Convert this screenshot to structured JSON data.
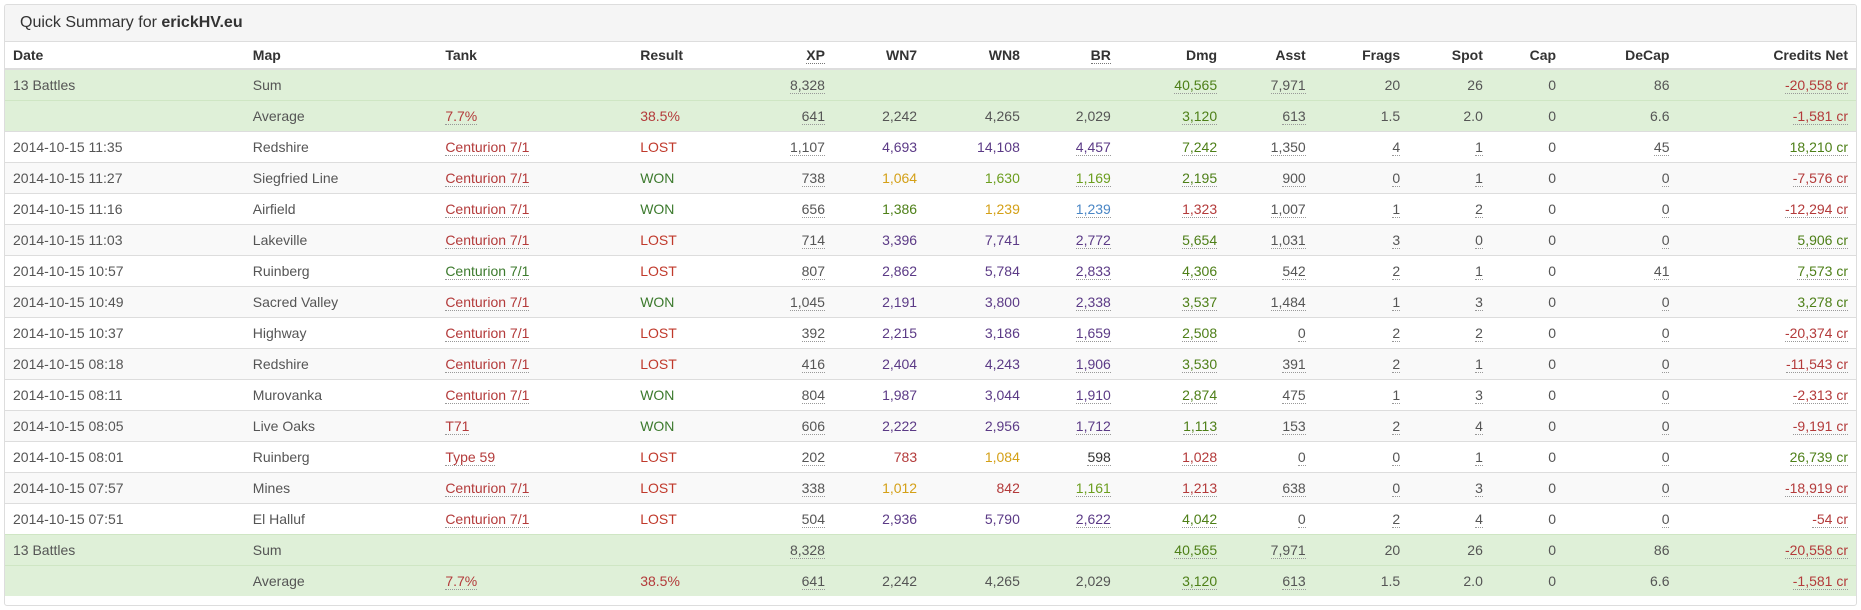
{
  "panel": {
    "title_prefix": "Quick Summary for ",
    "player": "erickHV.eu"
  },
  "columns": [
    "Date",
    "Map",
    "Tank",
    "Result",
    "XP",
    "WN7",
    "WN8",
    "BR",
    "Dmg",
    "Asst",
    "Frags",
    "Spot",
    "Cap",
    "DeCap",
    "Credits Net"
  ],
  "summary_top": {
    "sum": {
      "date": "13 Battles",
      "map": "Sum",
      "tank": "",
      "result": "",
      "xp": "8,328",
      "wn7": "",
      "wn8": "",
      "br": "",
      "dmg": "40,565",
      "asst": "7,971",
      "frags": "20",
      "spot": "26",
      "cap": "0",
      "decap": "86",
      "credits": "-20,558 cr"
    },
    "avg": {
      "date": "",
      "map": "Average",
      "tank": "7.7%",
      "result": "38.5%",
      "xp": "641",
      "wn7": "2,242",
      "wn8": "4,265",
      "br": "2,029",
      "dmg": "3,120",
      "asst": "613",
      "frags": "1.5",
      "spot": "2.0",
      "cap": "0",
      "decap": "6.6",
      "credits": "-1,581 cr"
    }
  },
  "battles": [
    {
      "date": "2014-10-15 11:35",
      "map": "Redshire",
      "tank": "Centurion 7/1",
      "result": "LOST",
      "xp": "1,107",
      "wn7": "4,693",
      "wn8": "14,108",
      "br": "4,457",
      "dmg": "7,242",
      "asst": "1,350",
      "frags": "4",
      "spot": "1",
      "cap": "0",
      "decap": "45",
      "credits": "18,210 cr"
    },
    {
      "date": "2014-10-15 11:27",
      "map": "Siegfried Line",
      "tank": "Centurion 7/1",
      "result": "WON",
      "xp": "738",
      "wn7": "1,064",
      "wn8": "1,630",
      "br": "1,169",
      "dmg": "2,195",
      "asst": "900",
      "frags": "0",
      "spot": "1",
      "cap": "0",
      "decap": "0",
      "credits": "-7,576 cr"
    },
    {
      "date": "2014-10-15 11:16",
      "map": "Airfield",
      "tank": "Centurion 7/1",
      "result": "WON",
      "xp": "656",
      "wn7": "1,386",
      "wn8": "1,239",
      "br": "1,239",
      "dmg": "1,323",
      "asst": "1,007",
      "frags": "1",
      "spot": "2",
      "cap": "0",
      "decap": "0",
      "credits": "-12,294 cr"
    },
    {
      "date": "2014-10-15 11:03",
      "map": "Lakeville",
      "tank": "Centurion 7/1",
      "result": "LOST",
      "xp": "714",
      "wn7": "3,396",
      "wn8": "7,741",
      "br": "2,772",
      "dmg": "5,654",
      "asst": "1,031",
      "frags": "3",
      "spot": "0",
      "cap": "0",
      "decap": "0",
      "credits": "5,906 cr"
    },
    {
      "date": "2014-10-15 10:57",
      "map": "Ruinberg",
      "tank": "Centurion 7/1",
      "result": "LOST",
      "xp": "807",
      "wn7": "2,862",
      "wn8": "5,784",
      "br": "2,833",
      "dmg": "4,306",
      "asst": "542",
      "frags": "2",
      "spot": "1",
      "cap": "0",
      "decap": "41",
      "credits": "7,573 cr"
    },
    {
      "date": "2014-10-15 10:49",
      "map": "Sacred Valley",
      "tank": "Centurion 7/1",
      "result": "WON",
      "xp": "1,045",
      "wn7": "2,191",
      "wn8": "3,800",
      "br": "2,338",
      "dmg": "3,537",
      "asst": "1,484",
      "frags": "1",
      "spot": "3",
      "cap": "0",
      "decap": "0",
      "credits": "3,278 cr"
    },
    {
      "date": "2014-10-15 10:37",
      "map": "Highway",
      "tank": "Centurion 7/1",
      "result": "LOST",
      "xp": "392",
      "wn7": "2,215",
      "wn8": "3,186",
      "br": "1,659",
      "dmg": "2,508",
      "asst": "0",
      "frags": "2",
      "spot": "2",
      "cap": "0",
      "decap": "0",
      "credits": "-20,374 cr"
    },
    {
      "date": "2014-10-15 08:18",
      "map": "Redshire",
      "tank": "Centurion 7/1",
      "result": "LOST",
      "xp": "416",
      "wn7": "2,404",
      "wn8": "4,243",
      "br": "1,906",
      "dmg": "3,530",
      "asst": "391",
      "frags": "2",
      "spot": "1",
      "cap": "0",
      "decap": "0",
      "credits": "-11,543 cr"
    },
    {
      "date": "2014-10-15 08:11",
      "map": "Murovanka",
      "tank": "Centurion 7/1",
      "result": "WON",
      "xp": "804",
      "wn7": "1,987",
      "wn8": "3,044",
      "br": "1,910",
      "dmg": "2,874",
      "asst": "475",
      "frags": "1",
      "spot": "3",
      "cap": "0",
      "decap": "0",
      "credits": "-2,313 cr"
    },
    {
      "date": "2014-10-15 08:05",
      "map": "Live Oaks",
      "tank": "T71",
      "result": "WON",
      "xp": "606",
      "wn7": "2,222",
      "wn8": "2,956",
      "br": "1,712",
      "dmg": "1,113",
      "asst": "153",
      "frags": "2",
      "spot": "4",
      "cap": "0",
      "decap": "0",
      "credits": "-9,191 cr"
    },
    {
      "date": "2014-10-15 08:01",
      "map": "Ruinberg",
      "tank": "Type 59",
      "result": "LOST",
      "xp": "202",
      "wn7": "783",
      "wn8": "1,084",
      "br": "598",
      "dmg": "1,028",
      "asst": "0",
      "frags": "0",
      "spot": "1",
      "cap": "0",
      "decap": "0",
      "credits": "26,739 cr"
    },
    {
      "date": "2014-10-15 07:57",
      "map": "Mines",
      "tank": "Centurion 7/1",
      "result": "LOST",
      "xp": "338",
      "wn7": "1,012",
      "wn8": "842",
      "br": "1,161",
      "dmg": "1,213",
      "asst": "638",
      "frags": "0",
      "spot": "3",
      "cap": "0",
      "decap": "0",
      "credits": "-18,919 cr"
    },
    {
      "date": "2014-10-15 07:51",
      "map": "El Halluf",
      "tank": "Centurion 7/1",
      "result": "LOST",
      "xp": "504",
      "wn7": "2,936",
      "wn8": "5,790",
      "br": "2,622",
      "dmg": "4,042",
      "asst": "0",
      "frags": "2",
      "spot": "4",
      "cap": "0",
      "decap": "0",
      "credits": "-54 cr"
    }
  ],
  "summary_bottom": {
    "sum": {
      "date": "13 Battles",
      "map": "Sum",
      "tank": "",
      "result": "",
      "xp": "8,328",
      "wn7": "",
      "wn8": "",
      "br": "",
      "dmg": "40,565",
      "asst": "7,971",
      "frags": "20",
      "spot": "26",
      "cap": "0",
      "decap": "86",
      "credits": "-20,558 cr"
    },
    "avg": {
      "date": "",
      "map": "Average",
      "tank": "7.7%",
      "result": "38.5%",
      "xp": "641",
      "wn7": "2,242",
      "wn8": "4,265",
      "br": "2,029",
      "dmg": "3,120",
      "asst": "613",
      "frags": "1.5",
      "spot": "2.0",
      "cap": "0",
      "decap": "6.6",
      "credits": "-1,581 cr"
    }
  },
  "colors": {
    "red": "#b33a3a",
    "lose": "#c0392b",
    "win": "#3c7a2d",
    "green": "#4d7f17",
    "light_green": "#6c9e1f",
    "yellow": "#d4a017",
    "blue": "#4a86c5",
    "purple": "#5b3a86",
    "summary_bg": "#dff0d8",
    "stripe_bg": "#f9f9f9",
    "border": "#dddddd"
  }
}
